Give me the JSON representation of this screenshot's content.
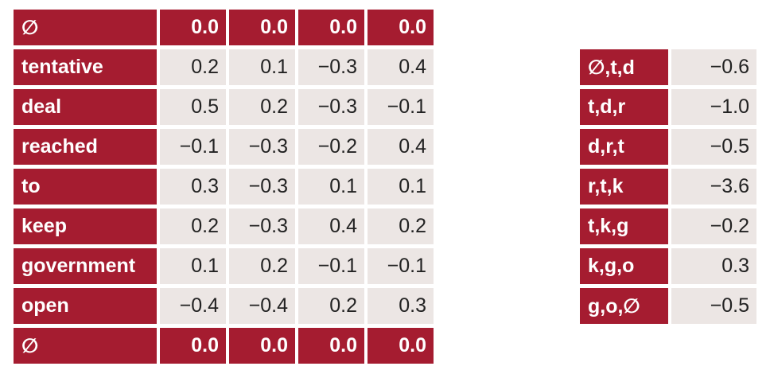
{
  "embedding_table": {
    "rows": [
      {
        "word": "∅",
        "values": [
          "0.0",
          "0.0",
          "0.0",
          "0.0"
        ],
        "boundary": true
      },
      {
        "word": "tentative",
        "values": [
          "0.2",
          "0.1",
          "−0.3",
          "0.4"
        ],
        "boundary": false
      },
      {
        "word": "deal",
        "values": [
          "0.5",
          "0.2",
          "−0.3",
          "−0.1"
        ],
        "boundary": false
      },
      {
        "word": "reached",
        "values": [
          "−0.1",
          "−0.3",
          "−0.2",
          "0.4"
        ],
        "boundary": false
      },
      {
        "word": "to",
        "values": [
          "0.3",
          "−0.3",
          "0.1",
          "0.1"
        ],
        "boundary": false
      },
      {
        "word": "keep",
        "values": [
          "0.2",
          "−0.3",
          "0.4",
          "0.2"
        ],
        "boundary": false
      },
      {
        "word": "government",
        "values": [
          "0.1",
          "0.2",
          "−0.1",
          "−0.1"
        ],
        "boundary": false
      },
      {
        "word": "open",
        "values": [
          "−0.4",
          "−0.4",
          "0.2",
          "0.3"
        ],
        "boundary": false
      },
      {
        "word": "∅",
        "values": [
          "0.0",
          "0.0",
          "0.0",
          "0.0"
        ],
        "boundary": true
      }
    ]
  },
  "trigram_scores": {
    "rows": [
      {
        "trigram": "∅,t,d",
        "score": "−0.6"
      },
      {
        "trigram": "t,d,r",
        "score": "−1.0"
      },
      {
        "trigram": "d,r,t",
        "score": "−0.5"
      },
      {
        "trigram": "r,t,k",
        "score": "−3.6"
      },
      {
        "trigram": "t,k,g",
        "score": "−0.2"
      },
      {
        "trigram": "k,g,o",
        "score": "0.3"
      },
      {
        "trigram": "g,o,∅",
        "score": "−0.5"
      }
    ]
  },
  "colors": {
    "label_bg": "#a51c30",
    "value_bg": "#ece6e4"
  }
}
